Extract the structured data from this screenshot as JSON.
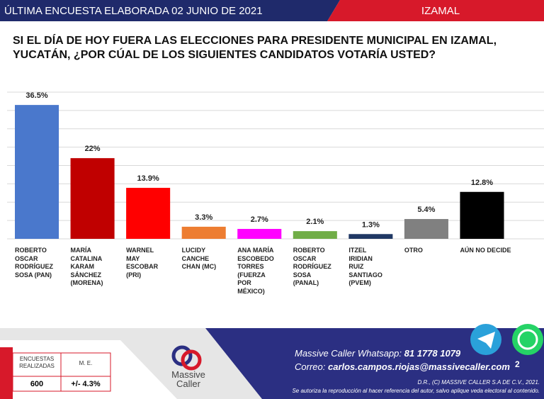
{
  "header": {
    "left": "ÚLTIMA ENCUESTA ELABORADA 02 JUNIO DE 2021",
    "right": "IZAMAL"
  },
  "chart_data": {
    "type": "bar",
    "title": "SI EL DÍA DE HOY FUERA LAS ELECCIONES PARA PRESIDENTE MUNICIPAL EN IZAMAL, YUCATÁN, ¿POR CÚAL DE LOS SIGUIENTES CANDIDATOS VOTARÍA USTED?",
    "categories": [
      "ROBERTO OSCAR RODRÍGUEZ SOSA (PAN)",
      "MARÍA CATALINA KARAM SÁNCHEZ (MORENA)",
      "WARNEL MAY ESCOBAR (PRI)",
      "LUCIDY CANCHE CHAN (MC)",
      "ANA MARÍA ESCOBEDO TORRES (FUERZA POR MÉXICO)",
      "ROBERTO OSCAR RODRÍGUEZ SOSA (PANAL)",
      "ITZEL IRIDIAN RUIZ SANTIAGO (PVEM)",
      "OTRO",
      "AÚN NO DECIDE"
    ],
    "values": [
      36.5,
      22,
      13.9,
      3.3,
      2.7,
      2.1,
      1.3,
      5.4,
      12.8
    ],
    "value_labels": [
      "36.5%",
      "22%",
      "13.9%",
      "3.3%",
      "2.7%",
      "2.1%",
      "1.3%",
      "5.4%",
      "12.8%"
    ],
    "colors": [
      "#4a78cc",
      "#c00000",
      "#ff0000",
      "#ed7d31",
      "#ff00ff",
      "#70ad47",
      "#203864",
      "#808080",
      "#000000"
    ],
    "ylim": [
      0,
      40
    ],
    "yticks": [
      0,
      5,
      10,
      15,
      20,
      25,
      30,
      35,
      40
    ],
    "grid": true,
    "show_tick_labels": false
  },
  "footer": {
    "table_headers": [
      "ENCUESTAS REALIZADAS",
      "M. E."
    ],
    "table_values": [
      "600",
      "+/- 4.3%"
    ],
    "logo": {
      "top": "Massive",
      "bottom": "Caller"
    },
    "whatsapp_label": "Massive Caller Whatsapp:",
    "whatsapp_number": "81 1778 1079",
    "email_label": "Correo:",
    "email": "carlos.campos.riojas@massivecaller.com",
    "copyright": "D.R., (C) MASSIVE CALLER S.A DE C.V., 2021.",
    "notice": "Se autoriza la reproducción al hacer referencia del autor, salvo aplique veda electoral al contenido.",
    "badge": "2"
  }
}
